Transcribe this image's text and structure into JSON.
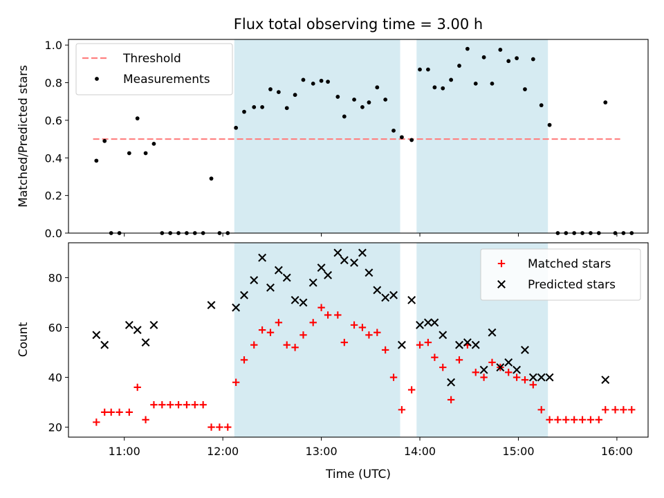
{
  "chart_data": [
    {
      "type": "scatter",
      "title": "Flux total observing time = 3.00 h",
      "xlabel": "",
      "ylabel": "Matched/Predicted stars",
      "xlim": [
        "10:26",
        "16:19"
      ],
      "ylim": [
        0,
        1.03
      ],
      "yticks": [
        0.0,
        0.2,
        0.4,
        0.6,
        0.8,
        1.0
      ],
      "ytick_labels": [
        "0.0",
        "0.2",
        "0.4",
        "0.6",
        "0.8",
        "1.0"
      ],
      "legend_position": "upper-left",
      "threshold": {
        "name": "Threshold",
        "value": 0.5,
        "x_start": "10:41",
        "x_end": "16:02",
        "color": "#ff8080"
      },
      "shaded_intervals": [
        [
          "12:07",
          "13:48"
        ],
        [
          "13:58",
          "15:18"
        ]
      ],
      "series": [
        {
          "name": "Measurements",
          "color": "#000000",
          "marker": "dot",
          "points": [
            [
              "10:43",
              0.385
            ],
            [
              "10:48",
              0.49
            ],
            [
              "10:52",
              0.0
            ],
            [
              "10:57",
              0.0
            ],
            [
              "11:03",
              0.425
            ],
            [
              "11:08",
              0.61
            ],
            [
              "11:13",
              0.425
            ],
            [
              "11:18",
              0.475
            ],
            [
              "11:23",
              0.0
            ],
            [
              "11:28",
              0.0
            ],
            [
              "11:33",
              0.0
            ],
            [
              "11:38",
              0.0
            ],
            [
              "11:43",
              0.0
            ],
            [
              "11:48",
              0.0
            ],
            [
              "11:53",
              0.29
            ],
            [
              "11:58",
              0.0
            ],
            [
              "12:03",
              0.0
            ],
            [
              "12:08",
              0.56
            ],
            [
              "12:13",
              0.645
            ],
            [
              "12:19",
              0.67
            ],
            [
              "12:24",
              0.67
            ],
            [
              "12:29",
              0.765
            ],
            [
              "12:34",
              0.75
            ],
            [
              "12:39",
              0.665
            ],
            [
              "12:44",
              0.735
            ],
            [
              "12:49",
              0.815
            ],
            [
              "12:55",
              0.795
            ],
            [
              "13:00",
              0.81
            ],
            [
              "13:04",
              0.805
            ],
            [
              "13:10",
              0.725
            ],
            [
              "13:14",
              0.62
            ],
            [
              "13:20",
              0.71
            ],
            [
              "13:25",
              0.67
            ],
            [
              "13:29",
              0.695
            ],
            [
              "13:34",
              0.775
            ],
            [
              "13:39",
              0.71
            ],
            [
              "13:44",
              0.545
            ],
            [
              "13:49",
              0.51
            ],
            [
              "13:55",
              0.495
            ],
            [
              "14:00",
              0.87
            ],
            [
              "14:05",
              0.87
            ],
            [
              "14:09",
              0.775
            ],
            [
              "14:14",
              0.77
            ],
            [
              "14:19",
              0.815
            ],
            [
              "14:24",
              0.89
            ],
            [
              "14:29",
              0.98
            ],
            [
              "14:34",
              0.795
            ],
            [
              "14:39",
              0.935
            ],
            [
              "14:44",
              0.795
            ],
            [
              "14:49",
              0.975
            ],
            [
              "14:54",
              0.915
            ],
            [
              "14:59",
              0.93
            ],
            [
              "15:04",
              0.765
            ],
            [
              "15:09",
              0.925
            ],
            [
              "15:14",
              0.68
            ],
            [
              "15:19",
              0.575
            ],
            [
              "15:24",
              0.0
            ],
            [
              "15:29",
              0.0
            ],
            [
              "15:34",
              0.0
            ],
            [
              "15:39",
              0.0
            ],
            [
              "15:44",
              0.0
            ],
            [
              "15:49",
              0.0
            ],
            [
              "15:53",
              0.695
            ],
            [
              "15:59",
              0.0
            ],
            [
              "16:04",
              0.0
            ],
            [
              "16:09",
              0.0
            ]
          ]
        }
      ]
    },
    {
      "type": "scatter",
      "title": "",
      "xlabel": "Time (UTC)",
      "ylabel": "Count",
      "xlim": [
        "10:26",
        "16:19"
      ],
      "ylim": [
        16,
        94
      ],
      "xticks": [
        "11:00",
        "12:00",
        "13:00",
        "14:00",
        "15:00",
        "16:00"
      ],
      "yticks": [
        20,
        40,
        60,
        80
      ],
      "ytick_labels": [
        "20",
        "40",
        "60",
        "80"
      ],
      "legend_position": "upper-right",
      "shaded_intervals": [
        [
          "12:07",
          "13:48"
        ],
        [
          "13:58",
          "15:18"
        ]
      ],
      "series": [
        {
          "name": "Matched stars",
          "color": "#ff0000",
          "marker": "plus",
          "points": [
            [
              "10:43",
              22
            ],
            [
              "10:48",
              26
            ],
            [
              "10:52",
              26
            ],
            [
              "10:57",
              26
            ],
            [
              "11:03",
              26
            ],
            [
              "11:08",
              36
            ],
            [
              "11:13",
              23
            ],
            [
              "11:18",
              29
            ],
            [
              "11:23",
              29
            ],
            [
              "11:28",
              29
            ],
            [
              "11:33",
              29
            ],
            [
              "11:38",
              29
            ],
            [
              "11:43",
              29
            ],
            [
              "11:48",
              29
            ],
            [
              "11:53",
              20
            ],
            [
              "11:58",
              20
            ],
            [
              "12:03",
              20
            ],
            [
              "12:08",
              38
            ],
            [
              "12:13",
              47
            ],
            [
              "12:19",
              53
            ],
            [
              "12:24",
              59
            ],
            [
              "12:29",
              58
            ],
            [
              "12:34",
              62
            ],
            [
              "12:39",
              53
            ],
            [
              "12:44",
              52
            ],
            [
              "12:49",
              57
            ],
            [
              "12:55",
              62
            ],
            [
              "13:00",
              68
            ],
            [
              "13:04",
              65
            ],
            [
              "13:10",
              65
            ],
            [
              "13:14",
              54
            ],
            [
              "13:20",
              61
            ],
            [
              "13:25",
              60
            ],
            [
              "13:29",
              57
            ],
            [
              "13:34",
              58
            ],
            [
              "13:39",
              51
            ],
            [
              "13:44",
              40
            ],
            [
              "13:49",
              27
            ],
            [
              "13:55",
              35
            ],
            [
              "14:00",
              53
            ],
            [
              "14:05",
              54
            ],
            [
              "14:09",
              48
            ],
            [
              "14:14",
              44
            ],
            [
              "14:19",
              31
            ],
            [
              "14:24",
              47
            ],
            [
              "14:29",
              53
            ],
            [
              "14:34",
              42
            ],
            [
              "14:39",
              40
            ],
            [
              "14:44",
              46
            ],
            [
              "14:49",
              44
            ],
            [
              "14:54",
              42
            ],
            [
              "14:59",
              40
            ],
            [
              "15:04",
              39
            ],
            [
              "15:09",
              37
            ],
            [
              "15:14",
              27
            ],
            [
              "15:19",
              23
            ],
            [
              "15:24",
              23
            ],
            [
              "15:29",
              23
            ],
            [
              "15:34",
              23
            ],
            [
              "15:39",
              23
            ],
            [
              "15:44",
              23
            ],
            [
              "15:49",
              23
            ],
            [
              "15:53",
              27
            ],
            [
              "15:59",
              27
            ],
            [
              "16:04",
              27
            ],
            [
              "16:09",
              27
            ]
          ]
        },
        {
          "name": "Predicted stars",
          "color": "#000000",
          "marker": "x",
          "points": [
            [
              "10:43",
              57
            ],
            [
              "10:48",
              53
            ],
            [
              "11:03",
              61
            ],
            [
              "11:08",
              59
            ],
            [
              "11:13",
              54
            ],
            [
              "11:18",
              61
            ],
            [
              "11:53",
              69
            ],
            [
              "12:08",
              68
            ],
            [
              "12:13",
              73
            ],
            [
              "12:19",
              79
            ],
            [
              "12:24",
              88
            ],
            [
              "12:29",
              76
            ],
            [
              "12:34",
              83
            ],
            [
              "12:39",
              80
            ],
            [
              "12:44",
              71
            ],
            [
              "12:49",
              70
            ],
            [
              "12:55",
              78
            ],
            [
              "13:00",
              84
            ],
            [
              "13:04",
              81
            ],
            [
              "13:10",
              90
            ],
            [
              "13:14",
              87
            ],
            [
              "13:20",
              86
            ],
            [
              "13:25",
              90
            ],
            [
              "13:29",
              82
            ],
            [
              "13:34",
              75
            ],
            [
              "13:39",
              72
            ],
            [
              "13:44",
              73
            ],
            [
              "13:49",
              53
            ],
            [
              "13:55",
              71
            ],
            [
              "14:00",
              61
            ],
            [
              "14:05",
              62
            ],
            [
              "14:09",
              62
            ],
            [
              "14:14",
              57
            ],
            [
              "14:19",
              38
            ],
            [
              "14:24",
              53
            ],
            [
              "14:29",
              54
            ],
            [
              "14:34",
              53
            ],
            [
              "14:39",
              43
            ],
            [
              "14:44",
              58
            ],
            [
              "14:49",
              44
            ],
            [
              "14:54",
              46
            ],
            [
              "14:59",
              43
            ],
            [
              "15:04",
              51
            ],
            [
              "15:09",
              40
            ],
            [
              "15:14",
              40
            ],
            [
              "15:19",
              40
            ],
            [
              "15:53",
              39
            ]
          ]
        }
      ]
    }
  ]
}
